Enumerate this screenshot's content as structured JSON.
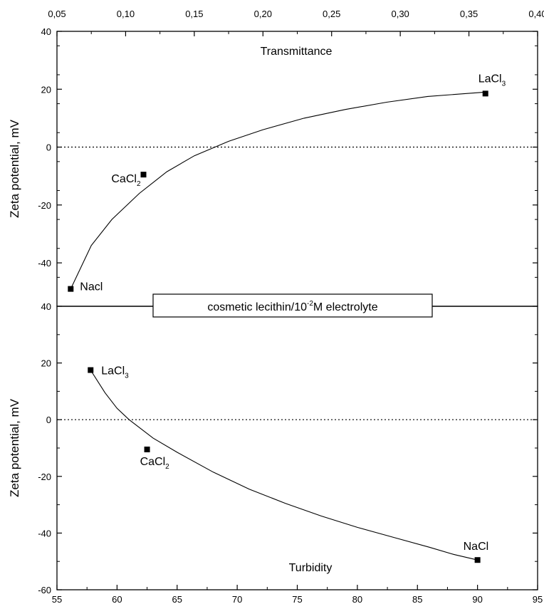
{
  "chart_data": [
    {
      "type": "scatter",
      "panel": "top",
      "annotation": "Transmittance",
      "ylabel": "Zeta potential, mV",
      "xlim": [
        0.05,
        0.4
      ],
      "ylim": [
        -55,
        40
      ],
      "x_ticks": [
        "0,05",
        "0,10",
        "0,15",
        "0,20",
        "0,25",
        "0,30",
        "0,35",
        "0,40"
      ],
      "x_tick_values": [
        0.05,
        0.1,
        0.15,
        0.2,
        0.25,
        0.3,
        0.35,
        0.4
      ],
      "y_ticks": [
        "40",
        "20",
        "0",
        "-20",
        "-40"
      ],
      "y_tick_values": [
        40,
        20,
        0,
        -20,
        -40
      ],
      "reference_line": 0,
      "points": [
        {
          "label": "Nacl",
          "label_sub": "",
          "x": 0.06,
          "y": -49
        },
        {
          "label": "CaCl",
          "label_sub": "2",
          "x": 0.113,
          "y": -9.5
        },
        {
          "label": "LaCl",
          "label_sub": "3",
          "x": 0.362,
          "y": 18.5
        }
      ],
      "fit_curve": {
        "x": [
          0.06,
          0.075,
          0.09,
          0.11,
          0.13,
          0.15,
          0.175,
          0.2,
          0.23,
          0.26,
          0.29,
          0.32,
          0.362
        ],
        "y": [
          -49,
          -34,
          -25,
          -16,
          -8.5,
          -3,
          2,
          6,
          10,
          13,
          15.5,
          17.5,
          19
        ]
      }
    },
    {
      "type": "scatter",
      "panel": "bottom",
      "annotation": "Turbidity",
      "ylabel": "Zeta potential, mV",
      "xlim": [
        55,
        95
      ],
      "ylim": [
        -60,
        40
      ],
      "x_ticks": [
        "55",
        "60",
        "65",
        "70",
        "75",
        "80",
        "85",
        "90",
        "95"
      ],
      "x_tick_values": [
        55,
        60,
        65,
        70,
        75,
        80,
        85,
        90,
        95
      ],
      "y_ticks": [
        "40",
        "20",
        "0",
        "-20",
        "-40",
        "-60"
      ],
      "y_tick_values": [
        40,
        20,
        0,
        -20,
        -40,
        -60
      ],
      "reference_line": 0,
      "points": [
        {
          "label": "LaCl",
          "label_sub": "3",
          "x": 57.8,
          "y": 17.5
        },
        {
          "label": "CaCl",
          "label_sub": "2",
          "x": 62.5,
          "y": -10.5
        },
        {
          "label": "NaCl",
          "label_sub": "",
          "x": 90.0,
          "y": -49.5
        }
      ],
      "fit_curve": {
        "x": [
          57.8,
          59,
          60,
          61,
          63,
          65,
          68,
          71,
          74,
          77,
          80,
          83,
          86,
          88,
          90
        ],
        "y": [
          17.5,
          9.5,
          4,
          0,
          -6.5,
          -11.5,
          -18.5,
          -24.5,
          -29.5,
          -34,
          -38,
          -41.5,
          -45,
          -47.5,
          -49.5
        ]
      }
    }
  ],
  "legend": {
    "text_before": "cosmetic lecithin/10",
    "superscript": "-2",
    "text_after": "M electrolyte"
  }
}
